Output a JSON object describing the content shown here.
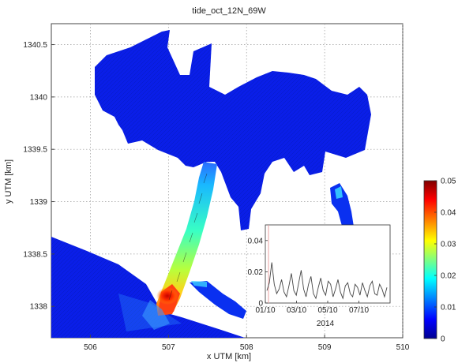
{
  "chart_data": {
    "type": "heatmap",
    "title": "tide_oct_12N_69W",
    "xlabel": "x UTM [km]",
    "ylabel": "y UTM [km]",
    "xlim": [
      505.5,
      510.0
    ],
    "ylim": [
      1337.7,
      1340.7
    ],
    "xticks": [
      "506",
      "507",
      "508",
      "509",
      "510"
    ],
    "yticks": [
      "1338",
      "1338.5",
      "1339",
      "1339.5",
      "1340",
      "1340.5"
    ],
    "grid": true,
    "colorbar": {
      "range": [
        0,
        0.05
      ],
      "ticks": [
        "0",
        "0.01",
        "0.02",
        "0.03",
        "0.04",
        "0.05"
      ],
      "colormap": "jet",
      "colors": [
        "#00008f",
        "#0000ff",
        "#00ffff",
        "#ffff00",
        "#ff0000",
        "#800000"
      ]
    },
    "inset": {
      "type": "line",
      "xlabel": "2014",
      "xtick_labels": [
        "01/10",
        "03/10",
        "05/10",
        "07/10"
      ],
      "ytick_labels": [
        "0",
        "0.02",
        "0.04"
      ],
      "ylim": [
        0,
        0.05
      ],
      "marker_line_color": "#e8a0a0",
      "line_color": "#444444",
      "values": [
        0.008,
        0.013,
        0.026,
        0.012,
        0.006,
        0.009,
        0.015,
        0.007,
        0.004,
        0.011,
        0.019,
        0.008,
        0.005,
        0.013,
        0.021,
        0.009,
        0.004,
        0.012,
        0.017,
        0.006,
        0.003,
        0.01,
        0.016,
        0.008,
        0.005,
        0.014,
        0.012,
        0.004,
        0.009,
        0.015,
        0.007,
        0.003,
        0.011,
        0.013,
        0.006,
        0.004,
        0.012,
        0.01,
        0.005,
        0.013,
        0.008,
        0.004,
        0.011,
        0.014,
        0.006,
        0.005,
        0.012,
        0.009,
        0.004,
        0.01
      ]
    }
  }
}
